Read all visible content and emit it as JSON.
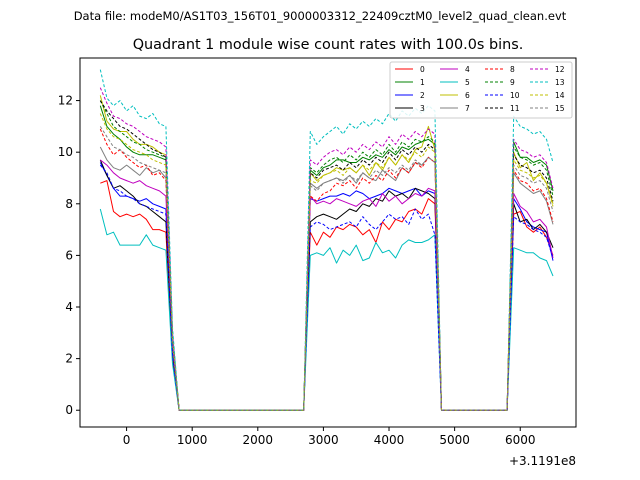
{
  "suptitle": "Data file: modeM0/AS1T03_156T01_9000003312_22409cztM0_level2_quad_clean.evt",
  "chart_data": {
    "type": "line",
    "title": "Quadrant 1 module wise count rates with 100.0s bins.",
    "xlabel": "",
    "ylabel": "",
    "x_offset_label": "+3.1191e8",
    "xlim": [
      -710,
      6850
    ],
    "ylim": [
      -0.65,
      13.65
    ],
    "x_ticks": [
      0,
      1000,
      2000,
      3000,
      4000,
      5000,
      6000
    ],
    "x_tick_labels": [
      "0",
      "1000",
      "2000",
      "3000",
      "4000",
      "5000",
      "6000"
    ],
    "y_ticks": [
      0,
      2,
      4,
      6,
      8,
      10,
      12
    ],
    "y_tick_labels": [
      "0",
      "2",
      "4",
      "6",
      "8",
      "10",
      "12"
    ],
    "legend_position": "top-right",
    "x": [
      -400,
      -300,
      -200,
      -100,
      0,
      100,
      200,
      300,
      400,
      500,
      600,
      700,
      800,
      2600,
      2700,
      2800,
      2900,
      3000,
      3100,
      3200,
      3300,
      3400,
      3500,
      3600,
      3700,
      3800,
      3900,
      4000,
      4100,
      4200,
      4300,
      4400,
      4500,
      4600,
      4700,
      4800,
      4900,
      5700,
      5800,
      5900,
      6000,
      6100,
      6200,
      6300,
      6400,
      6500
    ],
    "series": [
      {
        "name": "0",
        "color": "#ff0000",
        "dash": false,
        "values": [
          8.8,
          8.9,
          7.7,
          7.5,
          7.6,
          7.5,
          7.6,
          7.4,
          7.0,
          7.0,
          6.9,
          2.0,
          0,
          0,
          0,
          6.9,
          6.4,
          6.9,
          6.7,
          7.1,
          7.0,
          7.2,
          7.1,
          6.8,
          7.0,
          6.5,
          7.3,
          7.0,
          7.4,
          7.3,
          7.7,
          7.8,
          7.6,
          8.2,
          8.0,
          0,
          0,
          0,
          0,
          7.6,
          7.7,
          7.1,
          6.9,
          7.1,
          6.7,
          6.0
        ]
      },
      {
        "name": "1",
        "color": "#008000",
        "dash": false,
        "values": [
          11.8,
          11.0,
          10.7,
          10.5,
          10.2,
          10.0,
          9.9,
          9.9,
          9.9,
          9.8,
          9.7,
          2.8,
          0,
          0,
          0,
          9.3,
          9.1,
          9.4,
          9.5,
          9.7,
          9.7,
          9.6,
          9.6,
          9.8,
          9.7,
          9.9,
          9.8,
          10.1,
          9.9,
          10.2,
          10.1,
          10.3,
          10.4,
          10.5,
          10.3,
          0,
          0,
          0,
          0,
          10.4,
          9.8,
          9.8,
          9.6,
          9.7,
          9.5,
          8.5
        ]
      },
      {
        "name": "2",
        "color": "#0000ff",
        "dash": false,
        "values": [
          9.6,
          9.1,
          8.6,
          8.3,
          8.3,
          8.2,
          8.1,
          8.2,
          8.0,
          7.9,
          7.8,
          2.3,
          0,
          0,
          0,
          8.2,
          8.1,
          8.2,
          8.3,
          8.3,
          8.4,
          8.3,
          8.5,
          8.4,
          8.2,
          8.3,
          8.4,
          8.6,
          8.5,
          8.4,
          8.5,
          8.6,
          8.3,
          8.5,
          8.4,
          0,
          0,
          0,
          0,
          8.2,
          7.8,
          7.3,
          7.1,
          7.0,
          6.9,
          5.8
        ]
      },
      {
        "name": "3",
        "color": "#000000",
        "dash": false,
        "values": [
          9.7,
          9.1,
          8.6,
          8.7,
          8.5,
          8.3,
          8.0,
          7.9,
          7.7,
          7.5,
          7.3,
          2.2,
          0,
          0,
          0,
          7.3,
          7.5,
          7.6,
          7.5,
          7.4,
          7.6,
          7.8,
          7.7,
          8.0,
          7.9,
          8.2,
          8.1,
          8.5,
          8.3,
          8.4,
          8.2,
          8.6,
          8.5,
          8.4,
          8.2,
          0,
          0,
          0,
          0,
          8.0,
          7.3,
          7.4,
          7.0,
          7.2,
          6.9,
          6.3
        ]
      },
      {
        "name": "4",
        "color": "#bf00bf",
        "dash": false,
        "values": [
          9.7,
          9.5,
          9.2,
          9.0,
          8.9,
          8.8,
          8.9,
          8.7,
          8.6,
          8.5,
          8.3,
          2.4,
          0,
          0,
          0,
          8.3,
          8.0,
          8.1,
          8.0,
          8.2,
          8.1,
          8.0,
          7.9,
          8.1,
          8.2,
          7.9,
          8.4,
          8.1,
          8.3,
          8.0,
          8.2,
          8.4,
          8.3,
          8.6,
          8.5,
          0,
          0,
          0,
          0,
          8.4,
          7.9,
          7.7,
          7.3,
          7.4,
          7.1,
          5.9
        ]
      },
      {
        "name": "5",
        "color": "#00bfbf",
        "dash": false,
        "values": [
          7.8,
          6.8,
          6.9,
          6.4,
          6.4,
          6.4,
          6.4,
          6.8,
          6.4,
          6.3,
          6.2,
          1.8,
          0,
          0,
          0,
          6.0,
          6.1,
          6.0,
          6.3,
          5.7,
          6.2,
          6.0,
          6.4,
          5.8,
          5.9,
          6.5,
          6.1,
          6.2,
          5.9,
          6.4,
          6.6,
          6.5,
          6.5,
          6.6,
          6.8,
          0,
          0,
          0,
          0,
          6.3,
          6.2,
          6.1,
          6.1,
          5.9,
          5.8,
          5.2
        ]
      },
      {
        "name": "6",
        "color": "#bfbf00",
        "dash": false,
        "values": [
          12.2,
          11.2,
          10.9,
          10.8,
          10.8,
          10.5,
          10.3,
          10.3,
          10.2,
          10.0,
          9.9,
          2.9,
          0,
          0,
          0,
          9.2,
          8.9,
          9.1,
          9.2,
          9.4,
          9.3,
          9.4,
          9.2,
          9.5,
          9.1,
          9.6,
          9.3,
          9.8,
          9.5,
          9.9,
          9.6,
          10.1,
          10.2,
          11.0,
          10.1,
          0,
          0,
          0,
          0,
          10.0,
          9.4,
          9.6,
          8.9,
          9.2,
          8.8,
          8.0
        ]
      },
      {
        "name": "7",
        "color": "#808080",
        "dash": false,
        "values": [
          10.2,
          9.7,
          9.4,
          9.3,
          9.5,
          9.3,
          9.1,
          9.4,
          9.2,
          9.3,
          9.0,
          2.6,
          0,
          0,
          0,
          8.8,
          8.6,
          8.8,
          8.9,
          9.0,
          8.9,
          9.1,
          8.8,
          9.2,
          9.0,
          8.9,
          9.3,
          9.1,
          8.9,
          9.4,
          9.2,
          9.6,
          9.5,
          9.8,
          9.6,
          0,
          0,
          0,
          0,
          9.2,
          8.8,
          8.6,
          8.4,
          8.5,
          8.1,
          7.2
        ]
      },
      {
        "name": "8",
        "color": "#ff0000",
        "dash": true,
        "values": [
          10.9,
          10.3,
          9.9,
          10.1,
          9.8,
          9.6,
          9.4,
          9.5,
          9.1,
          9.2,
          8.9,
          2.6,
          0,
          0,
          0,
          8.3,
          8.1,
          8.4,
          8.5,
          8.8,
          8.7,
          8.9,
          8.6,
          9.0,
          8.8,
          9.1,
          8.9,
          9.3,
          9.0,
          9.4,
          9.2,
          9.6,
          9.4,
          9.8,
          9.6,
          0,
          0,
          0,
          0,
          9.3,
          8.9,
          8.8,
          8.5,
          8.6,
          8.2,
          7.3
        ]
      },
      {
        "name": "9",
        "color": "#008000",
        "dash": true,
        "values": [
          12.0,
          11.5,
          11.0,
          10.8,
          10.6,
          10.4,
          10.3,
          10.1,
          10.0,
          9.9,
          9.8,
          2.9,
          0,
          0,
          0,
          9.4,
          9.2,
          9.5,
          9.7,
          9.8,
          9.6,
          9.9,
          9.7,
          10.0,
          9.8,
          10.1,
          9.9,
          10.3,
          10.0,
          10.4,
          10.2,
          10.5,
          10.4,
          10.6,
          10.4,
          0,
          0,
          0,
          0,
          10.2,
          9.8,
          9.7,
          9.5,
          9.6,
          9.3,
          8.3
        ]
      },
      {
        "name": "10",
        "color": "#0000ff",
        "dash": true,
        "values": [
          9.5,
          9.2,
          8.6,
          8.5,
          8.3,
          8.2,
          8.0,
          7.9,
          7.8,
          7.7,
          7.6,
          2.2,
          0,
          0,
          0,
          7.1,
          7.3,
          7.2,
          7.0,
          7.1,
          7.2,
          7.3,
          7.1,
          7.5,
          7.2,
          7.0,
          7.3,
          7.6,
          7.4,
          7.5,
          7.2,
          7.8,
          7.4,
          7.6,
          6.8,
          0,
          0,
          0,
          0,
          7.5,
          7.3,
          7.2,
          7.0,
          6.9,
          6.7,
          5.9
        ]
      },
      {
        "name": "11",
        "color": "#000000",
        "dash": true,
        "values": [
          12.0,
          11.6,
          11.3,
          11.0,
          10.9,
          10.7,
          10.5,
          10.3,
          10.1,
          10.0,
          9.8,
          2.9,
          0,
          0,
          0,
          9.2,
          9.0,
          9.3,
          9.4,
          9.5,
          9.3,
          9.6,
          9.4,
          9.7,
          9.5,
          9.8,
          9.6,
          10.0,
          9.7,
          10.1,
          9.9,
          10.2,
          10.0,
          10.3,
          10.1,
          0,
          0,
          0,
          0,
          9.9,
          9.5,
          9.4,
          9.2,
          9.3,
          9.0,
          8.1
        ]
      },
      {
        "name": "12",
        "color": "#bf00bf",
        "dash": true,
        "values": [
          12.5,
          11.9,
          11.4,
          11.3,
          11.1,
          11.0,
          10.8,
          10.6,
          10.5,
          10.4,
          10.2,
          3.0,
          0,
          0,
          0,
          9.7,
          9.5,
          9.8,
          10.0,
          10.1,
          9.9,
          10.2,
          10.0,
          10.3,
          10.1,
          10.4,
          10.2,
          10.6,
          10.3,
          10.7,
          10.5,
          10.8,
          10.6,
          10.9,
          10.7,
          0,
          0,
          0,
          0,
          10.5,
          10.1,
          10.0,
          9.8,
          9.9,
          9.6,
          8.6
        ]
      },
      {
        "name": "13",
        "color": "#00bfbf",
        "dash": true,
        "values": [
          13.2,
          12.1,
          11.8,
          12.0,
          11.6,
          11.8,
          11.4,
          11.3,
          11.5,
          11.1,
          11.0,
          3.2,
          0,
          0,
          0,
          10.8,
          10.3,
          10.6,
          10.8,
          11.0,
          10.7,
          11.1,
          10.9,
          11.2,
          11.0,
          11.3,
          11.1,
          11.5,
          11.2,
          11.6,
          11.4,
          11.7,
          11.5,
          11.8,
          11.6,
          0,
          0,
          0,
          0,
          11.4,
          11.0,
          10.9,
          10.7,
          10.8,
          10.5,
          9.6
        ]
      },
      {
        "name": "14",
        "color": "#bfbf00",
        "dash": true,
        "values": [
          11.5,
          10.9,
          10.6,
          10.5,
          10.3,
          10.1,
          10.0,
          9.9,
          9.7,
          9.6,
          9.5,
          2.8,
          0,
          0,
          0,
          8.9,
          8.8,
          9.1,
          9.2,
          9.3,
          9.1,
          9.4,
          9.2,
          9.5,
          9.3,
          9.6,
          9.4,
          9.8,
          9.5,
          9.9,
          9.7,
          10.0,
          9.8,
          10.2,
          10.0,
          0,
          0,
          0,
          0,
          9.7,
          9.3,
          9.2,
          9.0,
          9.1,
          8.8,
          7.9
        ]
      },
      {
        "name": "15",
        "color": "#808080",
        "dash": true,
        "values": [
          11.0,
          10.6,
          10.2,
          10.1,
          9.9,
          9.8,
          9.6,
          9.5,
          9.4,
          9.3,
          9.2,
          2.7,
          0,
          0,
          0,
          8.7,
          8.5,
          8.8,
          8.9,
          9.0,
          8.8,
          9.1,
          8.9,
          9.2,
          9.0,
          9.3,
          9.1,
          9.4,
          9.2,
          9.5,
          9.3,
          9.7,
          9.5,
          9.8,
          9.6,
          0,
          0,
          0,
          0,
          9.5,
          9.1,
          9.0,
          8.8,
          8.9,
          8.6,
          7.7
        ]
      }
    ]
  }
}
